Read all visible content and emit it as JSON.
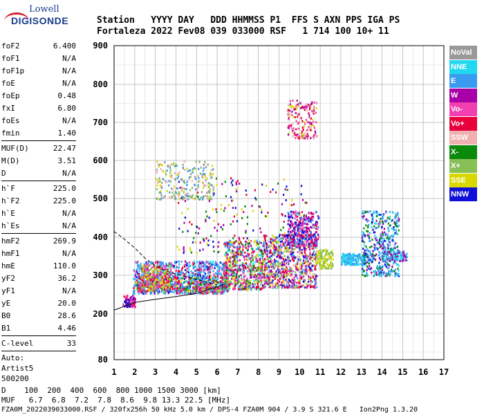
{
  "logo": {
    "top": "Lowell",
    "bottom": "DIGISONDE"
  },
  "header": {
    "line1": "Station   YYYY DAY   DDD HHMMSS P1  FFS S AXN PPS IGA PS",
    "line2": "Fortaleza 2022 Fev08 039 033000 RSF   1 714 100 10+ 11"
  },
  "params_group1": [
    {
      "k": "foF2",
      "v": "6.400"
    },
    {
      "k": "foF1",
      "v": "N/A"
    },
    {
      "k": "foF1p",
      "v": "N/A"
    },
    {
      "k": "foE",
      "v": "N/A"
    },
    {
      "k": "foEp",
      "v": "0.48"
    },
    {
      "k": "fxI",
      "v": "6.80"
    },
    {
      "k": "foEs",
      "v": "N/A"
    },
    {
      "k": "fmin",
      "v": "1.40"
    }
  ],
  "params_group2": [
    {
      "k": "MUF(D)",
      "v": "22.47"
    },
    {
      "k": "M(D)",
      "v": "3.51"
    },
    {
      "k": "D",
      "v": "N/A"
    }
  ],
  "params_group3": [
    {
      "k": "h`F",
      "v": "225.0"
    },
    {
      "k": "h`F2",
      "v": "225.0"
    },
    {
      "k": "h`E",
      "v": "N/A"
    },
    {
      "k": "h`Es",
      "v": "N/A"
    }
  ],
  "params_group4": [
    {
      "k": "hmF2",
      "v": "269.9"
    },
    {
      "k": "hmF1",
      "v": "N/A"
    },
    {
      "k": "hmE",
      "v": "110.0"
    },
    {
      "k": "yF2",
      "v": "36.2"
    },
    {
      "k": "yF1",
      "v": "N/A"
    },
    {
      "k": "yE",
      "v": "20.0"
    },
    {
      "k": "B0",
      "v": "28.6"
    },
    {
      "k": "B1",
      "v": "4.46"
    }
  ],
  "params_group5": [
    {
      "k": "C-level",
      "v": "33"
    }
  ],
  "auto": {
    "l1": "Auto:",
    "l2": "Artist5",
    "l3": "500200"
  },
  "legend": [
    {
      "label": "NoVal",
      "color": "#999999"
    },
    {
      "label": "NNE",
      "color": "#22d8f0"
    },
    {
      "label": "E",
      "color": "#3a9af0"
    },
    {
      "label": "W",
      "color": "#a800a8"
    },
    {
      "label": "Vo-",
      "color": "#f040b0"
    },
    {
      "label": "Vo+",
      "color": "#e8003c"
    },
    {
      "label": "SSW",
      "color": "#f0b0b0"
    },
    {
      "label": "X-",
      "color": "#0a8a0a"
    },
    {
      "label": "X+",
      "color": "#88c058"
    },
    {
      "label": "SSE",
      "color": "#d8d800"
    },
    {
      "label": "NNW",
      "color": "#1010d8"
    }
  ],
  "footer": {
    "line1": "D    100  200  400  600  800 1000 1500 3000 [km]",
    "line2": "MUF   6.7  6.8  7.2  7.8  8.6  9.8 13.3 22.5 [MHz]",
    "line3": "FZA0M_2022039033000.RSF / 320fx256h 50 kHz 5.0 km / DPS-4 FZA0M 904 / 3.9 S 321.6 E   Ion2Png 1.3.20"
  },
  "chart_data": {
    "type": "scatter",
    "xlim": [
      1,
      17
    ],
    "ylim": [
      80,
      900
    ],
    "x_ticks": [
      1,
      2,
      3,
      4,
      5,
      6,
      7,
      8,
      9,
      10,
      11,
      12,
      13,
      14,
      15,
      16,
      17
    ],
    "y_ticks": [
      80,
      200,
      300,
      400,
      500,
      600,
      700,
      800,
      900
    ],
    "grid": true,
    "legend_position": "right",
    "profile_curve": [
      [
        1.0,
        210
      ],
      [
        1.5,
        220
      ],
      [
        2,
        230
      ],
      [
        3,
        238
      ],
      [
        4,
        245
      ],
      [
        5,
        253
      ],
      [
        5.5,
        262
      ],
      [
        6.0,
        270
      ],
      [
        6.4,
        278
      ]
    ],
    "profile_curve_upper": [
      [
        1.0,
        415
      ],
      [
        1.5,
        395
      ],
      [
        2,
        372
      ],
      [
        2.5,
        345
      ],
      [
        3,
        325
      ],
      [
        3.5,
        312
      ],
      [
        4,
        303
      ],
      [
        5,
        290
      ],
      [
        5.5,
        282
      ],
      [
        6.0,
        275
      ]
    ],
    "data_clusters": [
      {
        "x": [
          1.4,
          2.0
        ],
        "y": [
          220,
          250
        ],
        "n": 80,
        "colors": [
          "Vo+",
          "W",
          "Vo-",
          "NNW"
        ]
      },
      {
        "x": [
          1.9,
          6.5
        ],
        "y": [
          255,
          340
        ],
        "n": 900,
        "colors": [
          "E",
          "NNE",
          "E",
          "E",
          "Vo+",
          "Vo-",
          "NNW"
        ]
      },
      {
        "x": [
          2.0,
          6.5
        ],
        "y": [
          260,
          300
        ],
        "n": 450,
        "colors": [
          "Vo+",
          "SSE",
          "Vo-",
          "X-",
          "E"
        ]
      },
      {
        "x": [
          2.3,
          3.7
        ],
        "y": [
          270,
          330
        ],
        "n": 200,
        "colors": [
          "Vo+",
          "Vo-",
          "SSE",
          "X+"
        ]
      },
      {
        "x": [
          6.3,
          8.2
        ],
        "y": [
          265,
          395
        ],
        "n": 600,
        "colors": [
          "SSE",
          "Vo+",
          "Vo-",
          "X+",
          "E",
          "NNE",
          "W",
          "X-"
        ]
      },
      {
        "x": [
          8.2,
          10.8
        ],
        "y": [
          270,
          410
        ],
        "n": 900,
        "colors": [
          "SSE",
          "Vo+",
          "Vo-",
          "SSW",
          "X+",
          "W",
          "NNW",
          "E"
        ]
      },
      {
        "x": [
          9.4,
          10.9
        ],
        "y": [
          380,
          470
        ],
        "n": 300,
        "colors": [
          "NNW",
          "W",
          "Vo+",
          "Vo-",
          "E"
        ]
      },
      {
        "x": [
          10.8,
          11.6
        ],
        "y": [
          320,
          370
        ],
        "n": 120,
        "colors": [
          "SSE",
          "X+"
        ]
      },
      {
        "x": [
          12.0,
          13.2
        ],
        "y": [
          330,
          360
        ],
        "n": 180,
        "colors": [
          "NNE",
          "E"
        ]
      },
      {
        "x": [
          13.0,
          14.8
        ],
        "y": [
          300,
          470
        ],
        "n": 450,
        "colors": [
          "NNE",
          "E",
          "E",
          "NNW",
          "X-",
          "W"
        ]
      },
      {
        "x": [
          14.0,
          15.2
        ],
        "y": [
          340,
          365
        ],
        "n": 120,
        "colors": [
          "NNE",
          "E",
          "W"
        ]
      },
      {
        "x": [
          3.0,
          5.8
        ],
        "y": [
          500,
          600
        ],
        "n": 250,
        "colors": [
          "SSE",
          "X+",
          "SSW",
          "NoVal",
          "E"
        ]
      },
      {
        "x": [
          9.4,
          10.8
        ],
        "y": [
          660,
          760
        ],
        "n": 180,
        "colors": [
          "W",
          "Vo+",
          "Vo-",
          "SSE",
          "SSW"
        ]
      },
      {
        "x": [
          4.0,
          10.5
        ],
        "y": [
          360,
          560
        ],
        "n": 200,
        "colors": [
          "W",
          "Vo+",
          "NNW",
          "X-",
          "SSE"
        ]
      }
    ]
  }
}
